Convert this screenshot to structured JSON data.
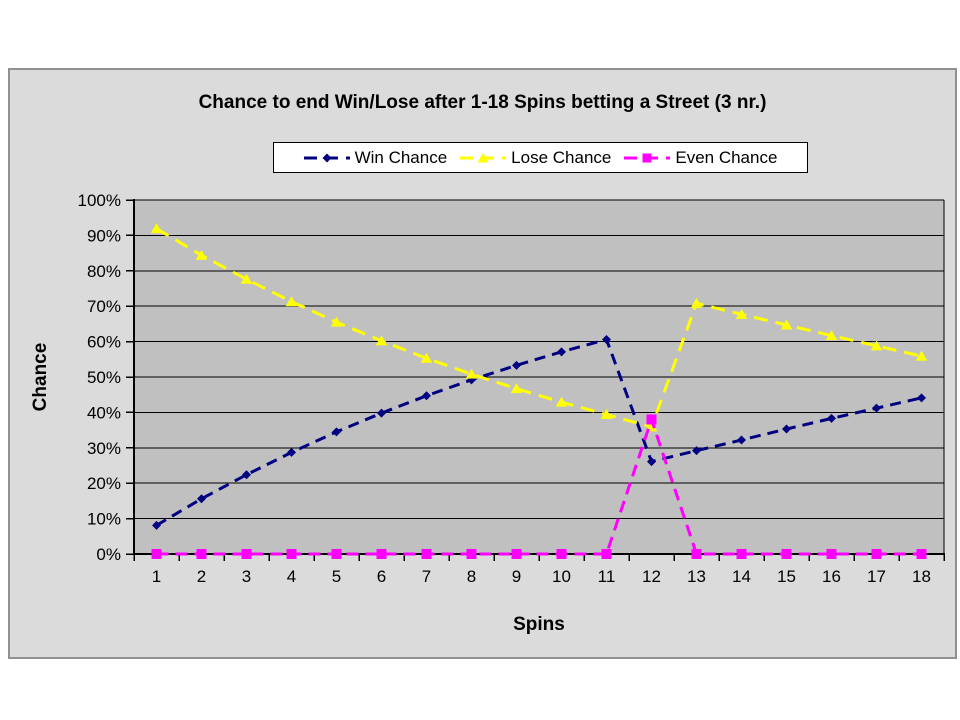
{
  "chart_data": {
    "type": "line",
    "title": "Chance to end Win/Lose after 1-18 Spins betting a Street (3 nr.)",
    "xlabel": "Spins",
    "ylabel": "Chance",
    "categories": [
      "1",
      "2",
      "3",
      "4",
      "5",
      "6",
      "7",
      "8",
      "9",
      "10",
      "11",
      "12",
      "13",
      "14",
      "15",
      "16",
      "17",
      "18"
    ],
    "y_tick_labels": [
      "0%",
      "10%",
      "20%",
      "30%",
      "40%",
      "50%",
      "60%",
      "70%",
      "80%",
      "90%",
      "100%"
    ],
    "ylim": [
      0,
      100
    ],
    "grid": "horizontal",
    "legend_position": "top",
    "series": [
      {
        "name": "Win Chance",
        "color": "#000080",
        "marker": "diamond",
        "dash": "11 7",
        "values": [
          8.1,
          15.6,
          22.4,
          28.7,
          34.5,
          39.8,
          44.7,
          49.2,
          53.3,
          57.1,
          60.6,
          26.1,
          29.2,
          32.2,
          35.3,
          38.3,
          41.2,
          44.1
        ]
      },
      {
        "name": "Lose Chance",
        "color": "#FFFF00",
        "marker": "triangle",
        "dash": "14 8",
        "values": [
          91.9,
          84.4,
          77.6,
          71.3,
          65.5,
          60.2,
          55.3,
          50.8,
          46.7,
          42.9,
          39.4,
          35.9,
          70.8,
          67.7,
          64.7,
          61.7,
          58.8,
          55.9
        ]
      },
      {
        "name": "Even Chance",
        "color": "#FF00FF",
        "marker": "square",
        "dash": "12 7",
        "values": [
          0,
          0,
          0,
          0,
          0,
          0,
          0,
          0,
          0,
          0,
          0,
          38,
          0,
          0,
          0,
          0,
          0,
          0
        ]
      }
    ],
    "colors": {
      "plot_bg": "#C0C0C0",
      "chart_bg": "#DBDBDB",
      "grid": "#000000",
      "axis": "#000000",
      "frame_border": "#909090"
    }
  }
}
